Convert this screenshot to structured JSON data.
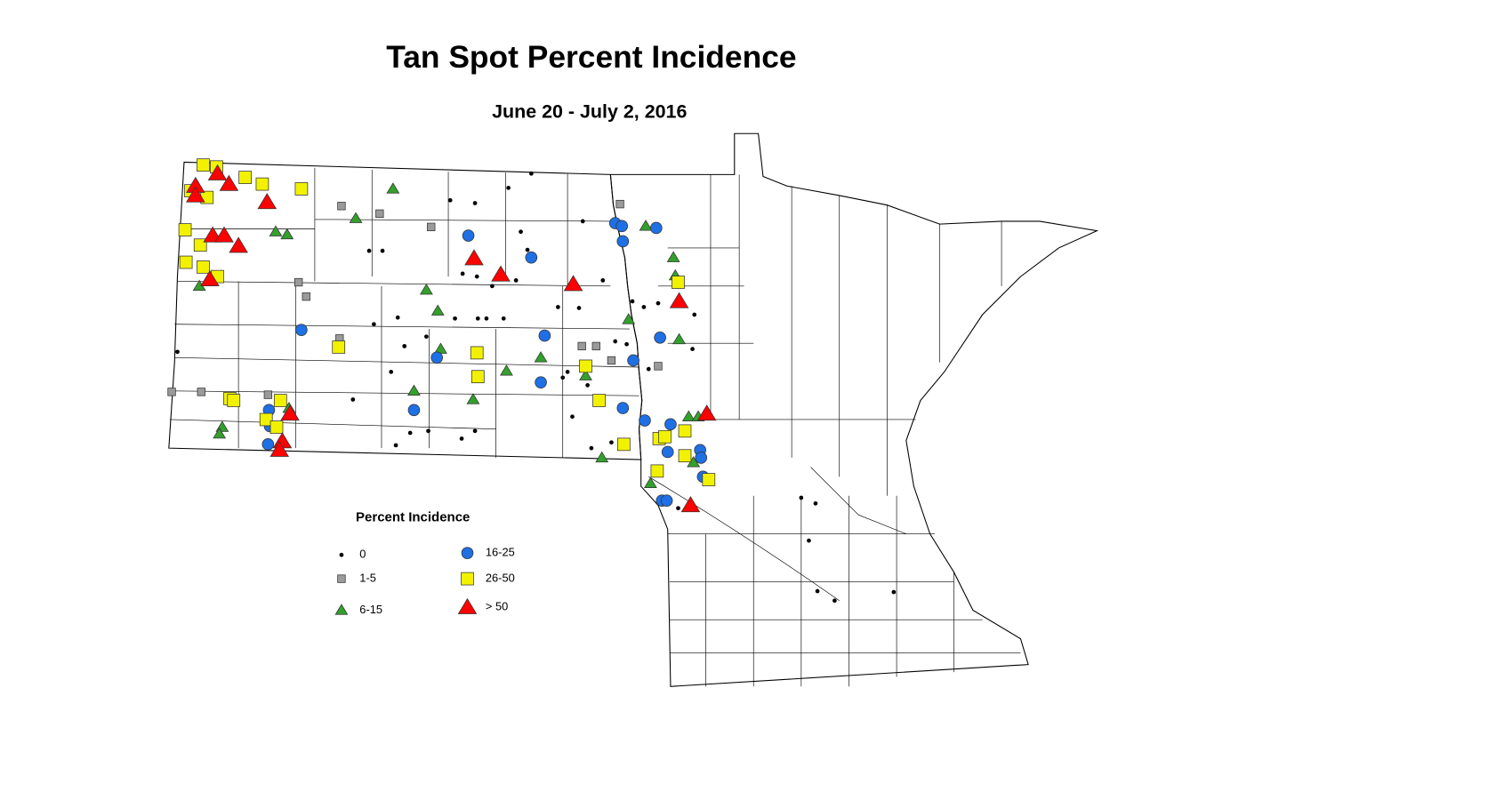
{
  "header": {
    "title": "Tan Spot Percent Incidence",
    "subtitle": "June 20 - July 2, 2016"
  },
  "legend": {
    "title": "Percent Incidence",
    "items": [
      {
        "label": "0",
        "shape": "dot",
        "color": "#000000"
      },
      {
        "label": "1-5",
        "shape": "square",
        "color": "#9a9a9a"
      },
      {
        "label": "6-15",
        "shape": "triangle",
        "color": "#33a02c"
      },
      {
        "label": "16-25",
        "shape": "circle",
        "color": "#1f6fe5"
      },
      {
        "label": "26-50",
        "shape": "square",
        "color": "#f2f200"
      },
      {
        "label": "> 50",
        "shape": "triangle",
        "color": "#ff0000"
      }
    ]
  }
}
